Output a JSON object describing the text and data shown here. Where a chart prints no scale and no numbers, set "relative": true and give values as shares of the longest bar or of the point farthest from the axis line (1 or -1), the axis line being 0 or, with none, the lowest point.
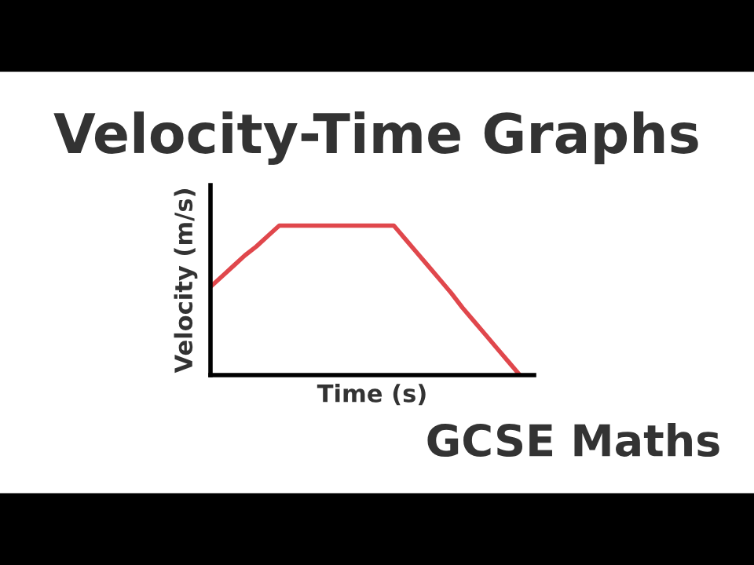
{
  "chart_data": {
    "type": "line",
    "title": "Velocity-Time Graphs",
    "xlabel": "Time (s)",
    "ylabel": "Velocity (m/s)",
    "relative": true,
    "categories": [
      null,
      null,
      null,
      null,
      null,
      null,
      null,
      null,
      null,
      null,
      null,
      null,
      null,
      null,
      null,
      null,
      null,
      null,
      null,
      null,
      null,
      null,
      null,
      null,
      null,
      null,
      null,
      null
    ],
    "series": [
      {
        "color": "#e0474c",
        "values": [
          0.59,
          0.66,
          0.73,
          0.8,
          0.86,
          0.93,
          1,
          1,
          1,
          1,
          1,
          1,
          1,
          1,
          1,
          1,
          1,
          0.91,
          0.82,
          0.73,
          0.64,
          0.55,
          0.45,
          0.36,
          0.27,
          0.18,
          0.09,
          0
        ]
      }
    ],
    "annotations": [
      "GCSE Maths"
    ],
    "grid": false,
    "legend": false,
    "marker": "none",
    "line_style": "solid"
  }
}
